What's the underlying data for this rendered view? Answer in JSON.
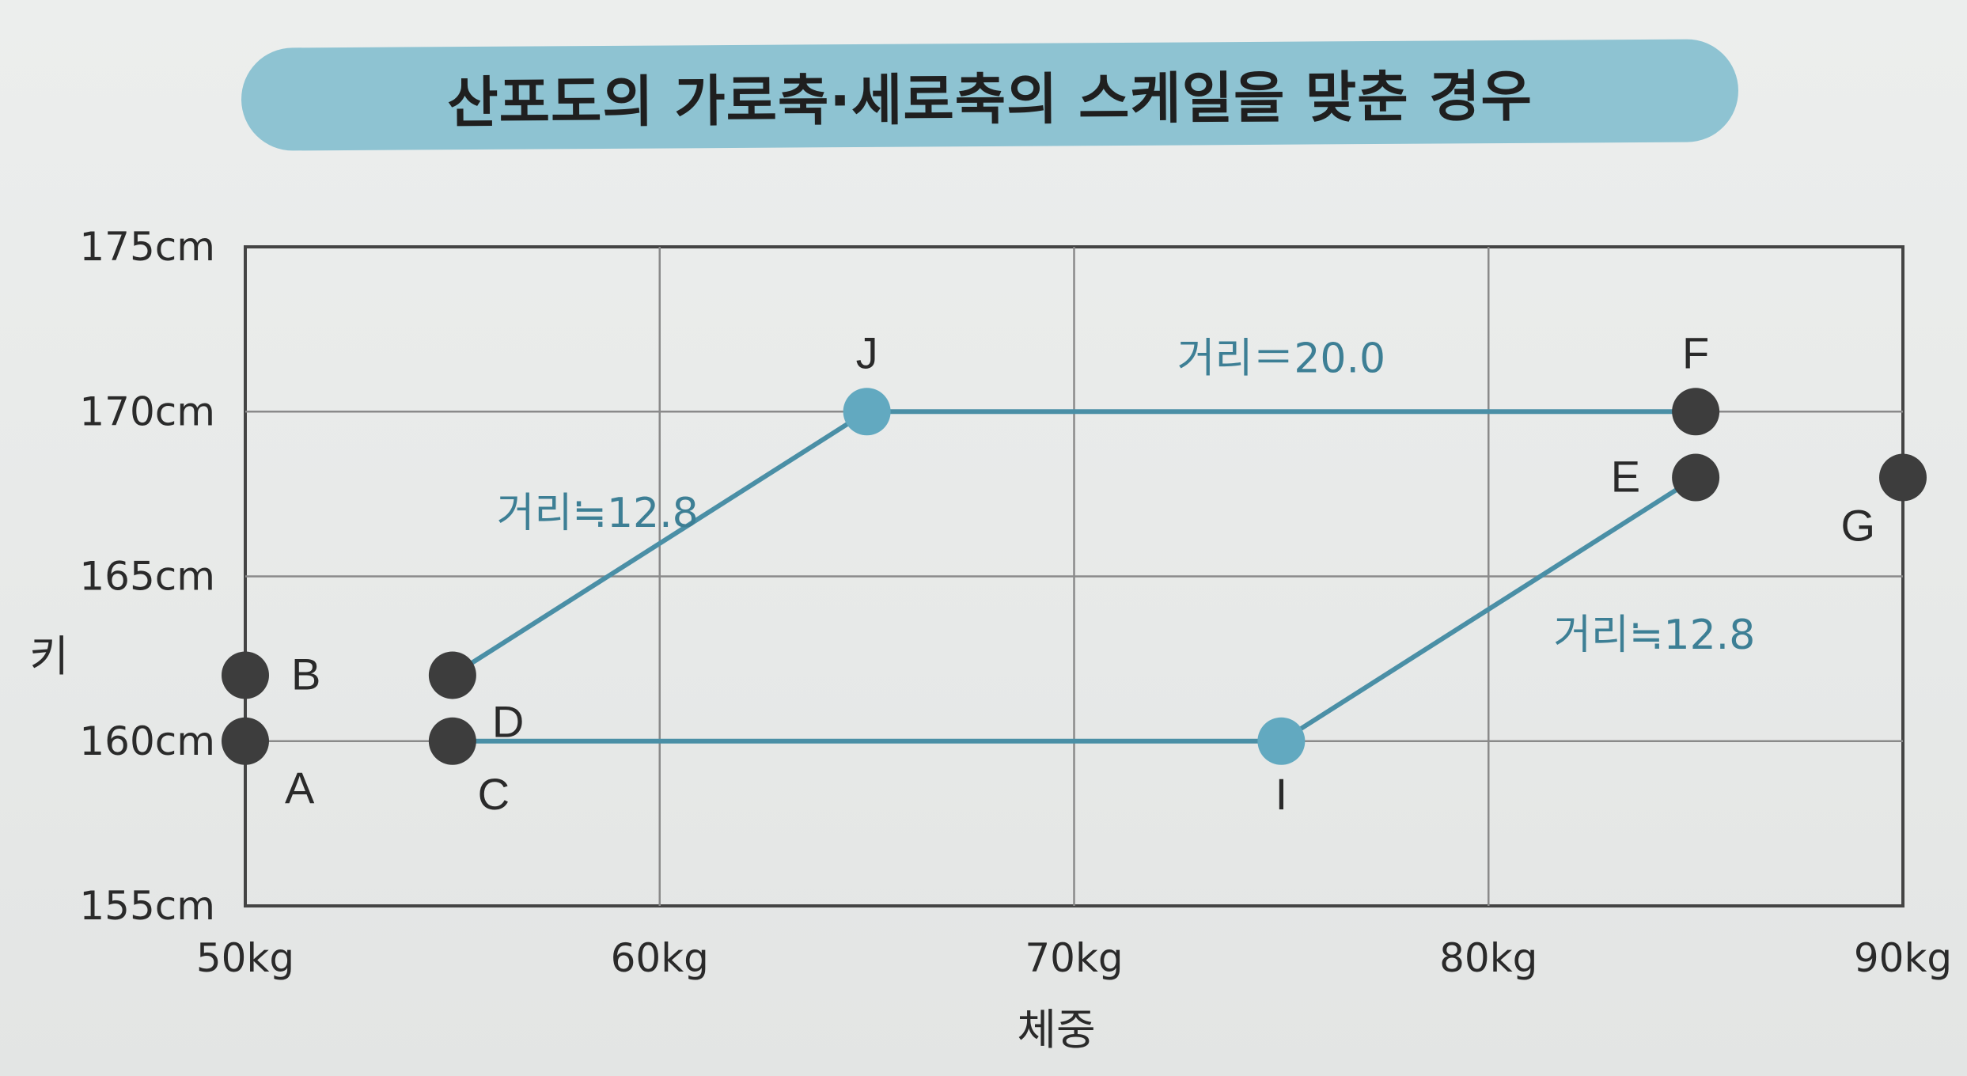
{
  "title": "산포도의 가로축·세로축의 스케일을 맞춘 경우",
  "colors": {
    "accent": "#4a8fa6",
    "point_dark": "#3d3d3d",
    "point_accent": "#62a9c0",
    "title_bg": "#8ec3d2",
    "grid": "#8a8a8a"
  },
  "chart_data": {
    "type": "scatter",
    "title": "산포도의 가로축·세로축의 스케일을 맞춘 경우",
    "xlabel": "체중",
    "ylabel": "키",
    "xlim": [
      50,
      90
    ],
    "ylim": [
      155,
      175
    ],
    "x_ticks": [
      {
        "value": 50,
        "label": "50kg"
      },
      {
        "value": 60,
        "label": "60kg"
      },
      {
        "value": 70,
        "label": "70kg"
      },
      {
        "value": 80,
        "label": "80kg"
      },
      {
        "value": 90,
        "label": "90kg"
      }
    ],
    "y_ticks": [
      {
        "value": 155,
        "label": "155cm"
      },
      {
        "value": 160,
        "label": "160cm"
      },
      {
        "value": 165,
        "label": "165cm"
      },
      {
        "value": 170,
        "label": "170cm"
      },
      {
        "value": 175,
        "label": "175cm"
      }
    ],
    "grid": true,
    "points": [
      {
        "label": "A",
        "x": 50,
        "y": 160,
        "style": "dark",
        "label_pos": "below-right"
      },
      {
        "label": "B",
        "x": 50,
        "y": 162,
        "style": "dark",
        "label_pos": "right"
      },
      {
        "label": "C",
        "x": 55,
        "y": 160,
        "style": "dark",
        "label_pos": "below"
      },
      {
        "label": "D",
        "x": 55,
        "y": 162,
        "style": "dark",
        "label_pos": "below-right"
      },
      {
        "label": "E",
        "x": 85,
        "y": 168,
        "style": "dark",
        "label_pos": "left"
      },
      {
        "label": "F",
        "x": 85,
        "y": 170,
        "style": "dark",
        "label_pos": "above"
      },
      {
        "label": "G",
        "x": 90,
        "y": 168,
        "style": "dark",
        "label_pos": "below-left"
      },
      {
        "label": "I",
        "x": 75,
        "y": 160,
        "style": "accent",
        "label_pos": "below"
      },
      {
        "label": "J",
        "x": 65,
        "y": 170,
        "style": "accent",
        "label_pos": "above"
      }
    ],
    "segments": [
      {
        "from": [
          55,
          162
        ],
        "to": [
          65,
          170
        ]
      },
      {
        "from": [
          65,
          170
        ],
        "to": [
          85,
          170
        ]
      },
      {
        "from": [
          55,
          160
        ],
        "to": [
          75,
          160
        ]
      },
      {
        "from": [
          75,
          160
        ],
        "to": [
          85,
          168
        ]
      }
    ],
    "annotations": [
      {
        "text": "거리≒12.8",
        "x": 58.5,
        "y": 166.5
      },
      {
        "text": "거리＝20.0",
        "x": 75,
        "y": 171.2
      },
      {
        "text": "거리≒12.8",
        "x": 84,
        "y": 162.8
      }
    ]
  }
}
